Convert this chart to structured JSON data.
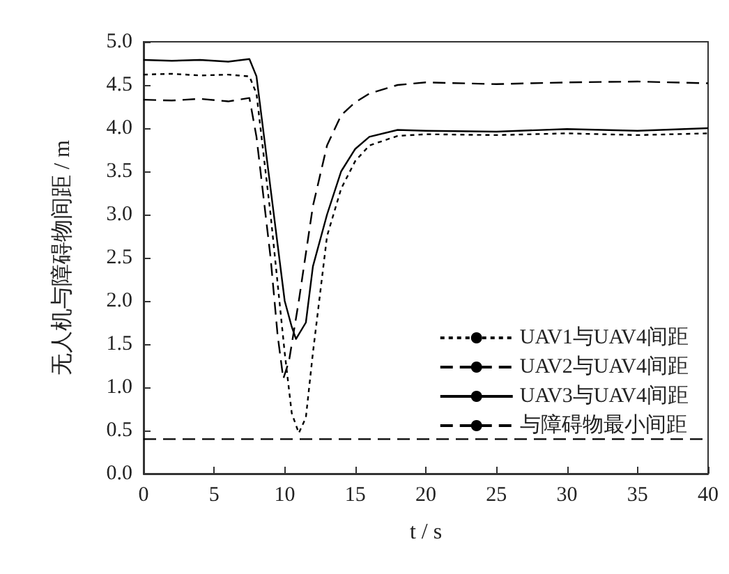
{
  "chart_data": {
    "type": "line",
    "xlabel": "t / s",
    "ylabel": "无人机与障碍物间距 / m",
    "xlim": [
      0,
      40
    ],
    "ylim": [
      0,
      5
    ],
    "xticks": [
      0,
      5,
      10,
      15,
      20,
      25,
      30,
      35,
      40
    ],
    "yticks": [
      {
        "value": 0,
        "label": "0.0"
      },
      0.5,
      {
        "value": 1,
        "label": "1.0"
      },
      1.5,
      {
        "value": 2,
        "label": "2.0"
      },
      2.5,
      {
        "value": 3,
        "label": "3.0"
      },
      3.5,
      {
        "value": 4,
        "label": "4.0"
      },
      4.5,
      {
        "value": 5,
        "label": "5.0"
      }
    ],
    "grid": false,
    "legend": "bottom right",
    "marker": "none",
    "series": [
      {
        "name": "UAV1与UAV4间距",
        "color": "#000000",
        "line_style": "dotted",
        "x": [
          0,
          2,
          4,
          6,
          7.5,
          8,
          9,
          10,
          10.5,
          11,
          11.5,
          12,
          13,
          14,
          15,
          16,
          18,
          20,
          25,
          30,
          35,
          40
        ],
        "values": [
          4.62,
          4.63,
          4.61,
          4.62,
          4.6,
          4.4,
          3.0,
          1.4,
          0.7,
          0.47,
          0.65,
          1.4,
          2.75,
          3.3,
          3.62,
          3.8,
          3.91,
          3.93,
          3.92,
          3.94,
          3.92,
          3.94
        ]
      },
      {
        "name": "UAV2与UAV4间距",
        "color": "#000000",
        "line_style": "dashed",
        "x": [
          0,
          2,
          4,
          6,
          7.5,
          8,
          9,
          9.5,
          9.9,
          10.3,
          11,
          12,
          13,
          14,
          15,
          16,
          18,
          20,
          25,
          30,
          35,
          40
        ],
        "values": [
          4.33,
          4.32,
          4.34,
          4.31,
          4.35,
          3.9,
          2.5,
          1.6,
          1.1,
          1.3,
          2.0,
          3.1,
          3.8,
          4.15,
          4.3,
          4.4,
          4.5,
          4.53,
          4.51,
          4.53,
          4.54,
          4.52
        ]
      },
      {
        "name": "UAV3与UAV4间距",
        "color": "#000000",
        "line_style": "solid",
        "x": [
          0,
          2,
          4,
          6,
          7.5,
          8,
          9,
          10,
          10.5,
          10.8,
          11.5,
          12,
          13,
          14,
          15,
          16,
          18,
          20,
          25,
          30,
          35,
          40
        ],
        "values": [
          4.79,
          4.78,
          4.79,
          4.77,
          4.8,
          4.6,
          3.3,
          2.0,
          1.7,
          1.56,
          1.75,
          2.4,
          3.0,
          3.5,
          3.76,
          3.9,
          3.98,
          3.97,
          3.96,
          3.99,
          3.97,
          4.0
        ]
      },
      {
        "name": "与障碍物最小间距",
        "color": "#000000",
        "line_style": "dashed",
        "x": [
          0,
          40
        ],
        "values": [
          0.4,
          0.4
        ]
      }
    ]
  }
}
